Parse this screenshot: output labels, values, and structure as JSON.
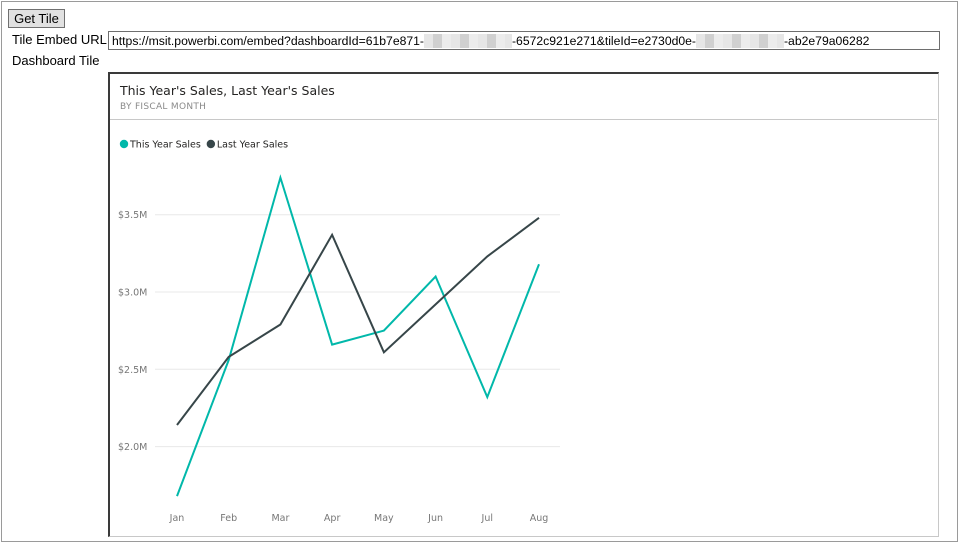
{
  "toolbar": {
    "get_tile_label": "Get Tile"
  },
  "form": {
    "embed_url_label": "Tile Embed URL",
    "embed_url_parts": [
      "https://msit.powerbi.com/embed?dashboardId=61b7e871-",
      "-6572c921e271&tileId=e2730d0e-",
      "-ab2e79a06282"
    ],
    "dashboard_tile_label": "Dashboard Tile"
  },
  "tile": {
    "title": "This Year's Sales, Last Year's Sales",
    "subtitle": "BY FISCAL MONTH"
  },
  "colors": {
    "this_year": "#01b8aa",
    "last_year": "#374649",
    "grid": "#e8e8e8",
    "axis_text": "#777777"
  },
  "chart_data": {
    "type": "line",
    "title": "This Year's Sales, Last Year's Sales",
    "subtitle": "BY FISCAL MONTH",
    "categories": [
      "Jan",
      "Feb",
      "Mar",
      "Apr",
      "May",
      "Jun",
      "Jul",
      "Aug"
    ],
    "series": [
      {
        "name": "This Year Sales",
        "color": "#01b8aa",
        "values": [
          1.68,
          2.56,
          3.74,
          2.66,
          2.75,
          3.1,
          2.32,
          3.18
        ]
      },
      {
        "name": "Last Year Sales",
        "color": "#374649",
        "values": [
          2.14,
          2.58,
          2.79,
          3.37,
          2.61,
          2.92,
          3.23,
          3.48
        ]
      }
    ],
    "y_ticks": [
      2.0,
      2.5,
      3.0,
      3.5
    ],
    "y_tick_labels": [
      "$2.0M",
      "$2.5M",
      "$3.0M",
      "$3.5M"
    ],
    "ylim": [
      1.6,
      3.81
    ],
    "grid": true,
    "legend": "top-left"
  }
}
